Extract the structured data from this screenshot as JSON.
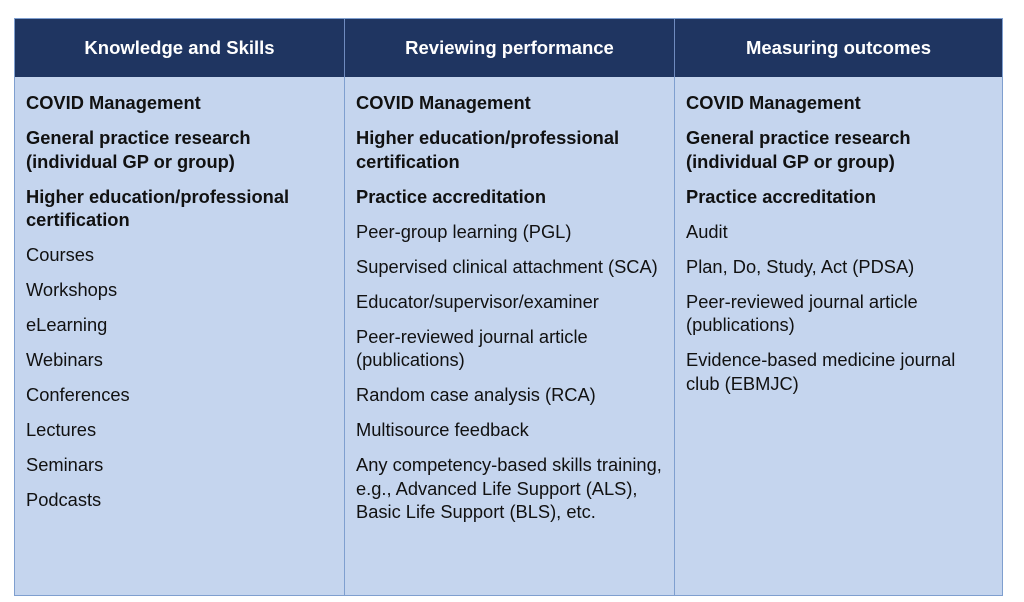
{
  "columns": [
    {
      "header": "Knowledge and Skills",
      "items": [
        {
          "text": "COVID Management",
          "bold": true
        },
        {
          "text": "General practice research (individual GP or group)",
          "bold": true
        },
        {
          "text": "Higher education/professional certification",
          "bold": true
        },
        {
          "text": "Courses",
          "bold": false
        },
        {
          "text": "Workshops",
          "bold": false
        },
        {
          "text": "eLearning",
          "bold": false
        },
        {
          "text": "Webinars",
          "bold": false
        },
        {
          "text": "Conferences",
          "bold": false
        },
        {
          "text": "Lectures",
          "bold": false
        },
        {
          "text": "Seminars",
          "bold": false
        },
        {
          "text": "Podcasts",
          "bold": false
        }
      ]
    },
    {
      "header": "Reviewing performance",
      "items": [
        {
          "text": "COVID Management",
          "bold": true
        },
        {
          "text": "Higher education/professional certification",
          "bold": true
        },
        {
          "text": "Practice accreditation",
          "bold": true
        },
        {
          "text": "Peer-group learning (PGL)",
          "bold": false
        },
        {
          "text": "Supervised clinical attachment (SCA)",
          "bold": false
        },
        {
          "text": "Educator/supervisor/examiner",
          "bold": false
        },
        {
          "text": "Peer-reviewed journal article (publications)",
          "bold": false
        },
        {
          "text": "Random case analysis (RCA)",
          "bold": false
        },
        {
          "text": "Multisource feedback",
          "bold": false
        },
        {
          "text": "Any competency-based skills training, e.g., Advanced Life Support (ALS), Basic Life Support (BLS), etc.",
          "bold": false
        }
      ]
    },
    {
      "header": "Measuring outcomes",
      "items": [
        {
          "text": "COVID Management",
          "bold": true
        },
        {
          "text": "General practice research (individual GP or group)",
          "bold": true
        },
        {
          "text": "Practice accreditation",
          "bold": true
        },
        {
          "text": "Audit",
          "bold": false
        },
        {
          "text": "Plan, Do, Study, Act (PDSA)",
          "bold": false
        },
        {
          "text": "Peer-reviewed journal article (publications)",
          "bold": false
        },
        {
          "text": "Evidence-based medicine journal club (EBMJC)",
          "bold": false
        }
      ]
    }
  ],
  "colors": {
    "header_bg": "#1f3561",
    "body_bg": "#c5d5ee",
    "border": "#7f9fcf"
  }
}
